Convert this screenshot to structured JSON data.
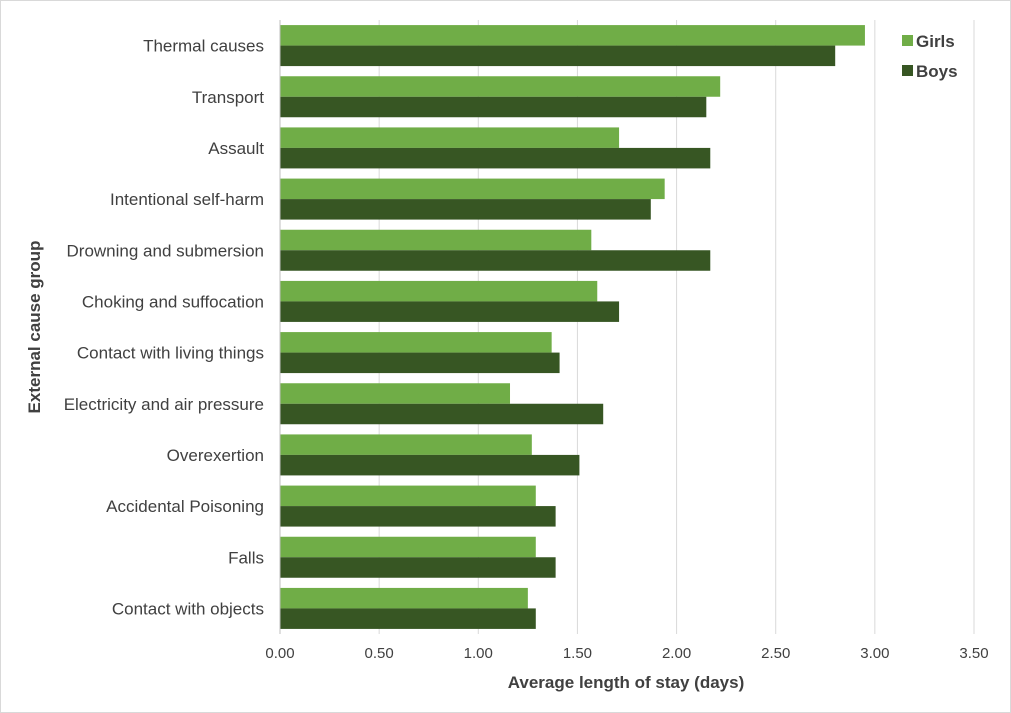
{
  "chart_data": {
    "type": "bar",
    "orientation": "horizontal",
    "title": "",
    "xlabel": "Average length of stay (days)",
    "ylabel": "External cause group",
    "xlim": [
      0,
      3.5
    ],
    "x_ticks": [
      "0.00",
      "0.50",
      "1.00",
      "1.50",
      "2.00",
      "2.50",
      "3.00",
      "3.50"
    ],
    "grid": "vertical",
    "legend_position": "top-right",
    "categories": [
      "Thermal causes",
      "Transport",
      "Assault",
      "Intentional self-harm",
      "Drowning and submersion",
      "Choking and suffocation",
      "Contact with living things",
      "Electricity and air pressure",
      "Overexertion",
      "Accidental Poisoning",
      "Falls",
      "Contact with objects"
    ],
    "series": [
      {
        "name": "Girls",
        "color": "#70ad47",
        "values": [
          2.95,
          2.22,
          1.71,
          1.94,
          1.57,
          1.6,
          1.37,
          1.16,
          1.27,
          1.29,
          1.29,
          1.25
        ]
      },
      {
        "name": "Boys",
        "color": "#375623",
        "values": [
          2.8,
          2.15,
          2.17,
          1.87,
          2.17,
          1.71,
          1.41,
          1.63,
          1.51,
          1.39,
          1.39,
          1.29
        ]
      }
    ]
  }
}
